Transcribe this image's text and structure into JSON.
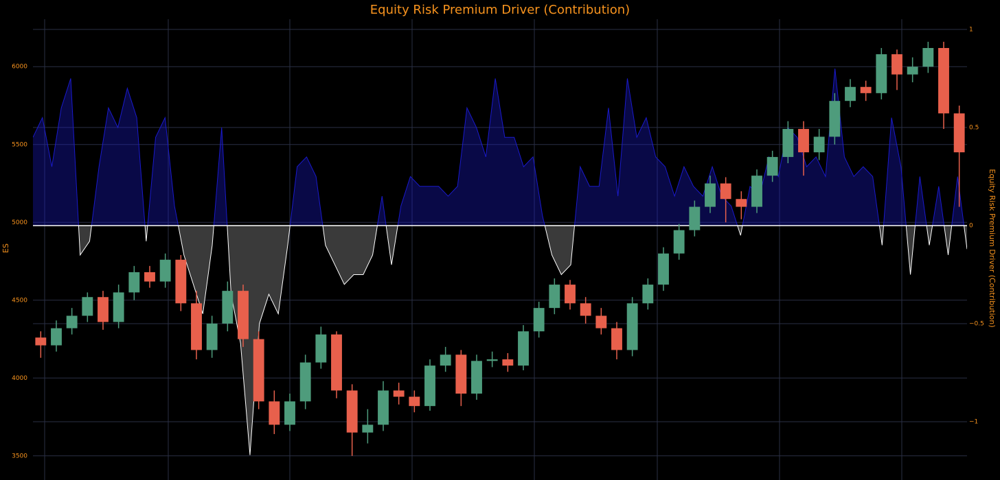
{
  "chart_data": {
    "type": "candlestick",
    "title": "Equity Risk Premium Driver (Contribution)",
    "ylabel": "ES",
    "y2label": "Equity Risk Premium Driver (Contribution)",
    "open": [
      4260,
      4210,
      4320,
      4400,
      4520,
      4360,
      4550,
      4680,
      4620,
      4760,
      4480,
      4180,
      4350,
      4560,
      4250,
      3850,
      3700,
      3850,
      4100,
      4280,
      3920,
      3650,
      3700,
      3920,
      3880,
      3820,
      4080,
      4150,
      3900,
      4110,
      4120,
      4080,
      4300,
      4450,
      4600,
      4480,
      4400,
      4320,
      4180,
      4480,
      4600,
      4800,
      4950,
      5100,
      5250,
      5150,
      5100,
      5300,
      5420,
      5600,
      5450,
      5550,
      5780,
      5870,
      5830,
      6080,
      5950,
      6000,
      6120,
      5700
    ],
    "high": [
      4300,
      4370,
      4450,
      4550,
      4560,
      4600,
      4720,
      4720,
      4800,
      4790,
      4560,
      4400,
      4620,
      4600,
      4300,
      3920,
      3900,
      4150,
      4330,
      4300,
      3960,
      3800,
      3980,
      3970,
      3920,
      4120,
      4200,
      4180,
      4150,
      4170,
      4160,
      4340,
      4490,
      4640,
      4630,
      4520,
      4450,
      4360,
      4520,
      4640,
      4840,
      4990,
      5140,
      5300,
      5290,
      5200,
      5340,
      5460,
      5650,
      5650,
      5600,
      5830,
      5920,
      5910,
      6120,
      6110,
      6060,
      6160,
      6160,
      5750
    ],
    "low": [
      4130,
      4170,
      4280,
      4360,
      4310,
      4320,
      4500,
      4580,
      4580,
      4430,
      4120,
      4130,
      4300,
      4200,
      3800,
      3640,
      3660,
      3800,
      4060,
      3870,
      3500,
      3580,
      3660,
      3830,
      3780,
      3790,
      4040,
      3820,
      3860,
      4070,
      4040,
      4050,
      4260,
      4410,
      4440,
      4350,
      4280,
      4120,
      4140,
      4440,
      4560,
      4760,
      4910,
      5060,
      5000,
      5020,
      5060,
      5260,
      5380,
      5300,
      5400,
      5500,
      5740,
      5780,
      5790,
      5850,
      5900,
      5960,
      5600,
      5100
    ],
    "close": [
      4210,
      4320,
      4400,
      4520,
      4360,
      4550,
      4680,
      4620,
      4760,
      4480,
      4180,
      4350,
      4560,
      4250,
      3850,
      3700,
      3850,
      4100,
      4280,
      3920,
      3650,
      3700,
      3920,
      3880,
      3820,
      4080,
      4150,
      3900,
      4110,
      4120,
      4080,
      4300,
      4450,
      4600,
      4480,
      4400,
      4320,
      4180,
      4480,
      4600,
      4800,
      4950,
      5100,
      5250,
      5150,
      5100,
      5300,
      5420,
      5600,
      5450,
      5550,
      5780,
      5870,
      5830,
      6080,
      5950,
      6000,
      6120,
      5700,
      5450
    ],
    "up_color": "#4e9c7c",
    "down_color": "#e8604c",
    "ylim": [
      3345,
      6305
    ],
    "yticks": [
      3500,
      4000,
      4500,
      5000,
      5500,
      6000
    ],
    "y2lim": [
      -1.297,
      1.052
    ],
    "y2ticks": [
      {
        "value": -1,
        "label": "−1"
      },
      {
        "value": -0.5,
        "label": "−0.5"
      },
      0,
      0.5,
      1
    ],
    "grid": true,
    "series": [
      {
        "type": "area",
        "axis": "y2",
        "color": "#1a1acc",
        "negative_color": "#ffffff",
        "values": [
          0.45,
          0.55,
          0.3,
          0.6,
          0.75,
          -0.15,
          -0.08,
          0.3,
          0.6,
          0.5,
          0.7,
          0.55,
          -0.08,
          0.45,
          0.55,
          0.1,
          -0.15,
          -0.3,
          -0.45,
          -0.1,
          0.5,
          -0.35,
          -0.6,
          -1.17,
          -0.5,
          -0.35,
          -0.45,
          -0.1,
          0.3,
          0.35,
          0.25,
          -0.1,
          -0.2,
          -0.3,
          -0.25,
          -0.25,
          -0.15,
          0.15,
          -0.2,
          0.1,
          0.25,
          0.2,
          0.2,
          0.2,
          0.15,
          0.2,
          0.6,
          0.5,
          0.35,
          0.75,
          0.45,
          0.45,
          0.3,
          0.35,
          0.05,
          -0.15,
          -0.25,
          -0.2,
          0.3,
          0.2,
          0.2,
          0.6,
          0.15,
          0.75,
          0.45,
          0.55,
          0.35,
          0.3,
          0.15,
          0.3,
          0.2,
          0.15,
          0.3,
          0.15,
          0.1,
          -0.05,
          0.2,
          0.15,
          0.35,
          0.25,
          0.5,
          0.45,
          0.3,
          0.35,
          0.25,
          0.8,
          0.35,
          0.25,
          0.3,
          0.25,
          -0.1,
          0.55,
          0.3,
          -0.25,
          0.25,
          -0.1,
          0.2,
          -0.15,
          0.25,
          -0.12
        ]
      }
    ]
  }
}
